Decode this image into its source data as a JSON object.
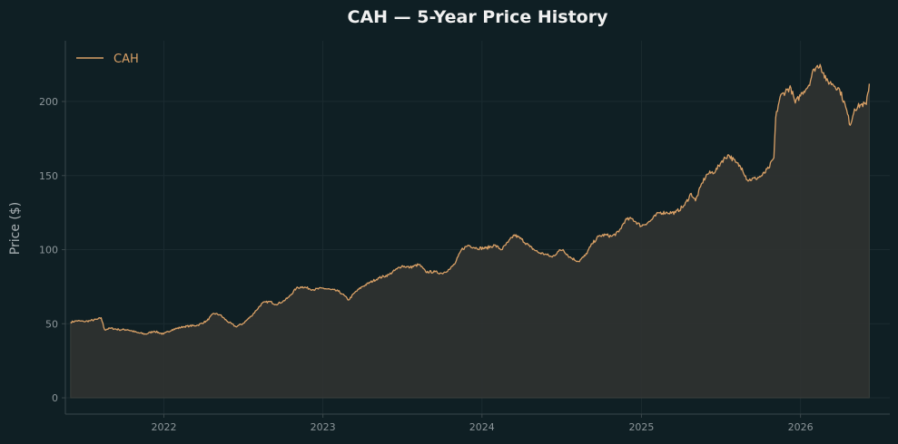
{
  "chart_data": {
    "type": "area",
    "title": "CAH — 5-Year Price History",
    "xlabel": "",
    "ylabel": "Price ($)",
    "xlim": [
      "2021-05-20",
      "2026-07-25"
    ],
    "ylim": [
      -11,
      241
    ],
    "x_ticks": [
      "2022",
      "2023",
      "2024",
      "2025",
      "2026"
    ],
    "y_ticks": [
      0,
      50,
      100,
      150,
      200
    ],
    "grid": true,
    "legend": "top-left",
    "colors": {
      "background": "#0f1f24",
      "line": "#d9a066",
      "fill": "#2e3230",
      "grid": "#1b2b30",
      "axis": "#3a474b",
      "tick_text": "#8c969a",
      "title_text": "#f0f0f0",
      "label_text": "#a8b0b3"
    },
    "series": [
      {
        "name": "CAH",
        "points": [
          [
            "2021-06-01",
            51
          ],
          [
            "2021-06-15",
            52
          ],
          [
            "2021-07-01",
            51.5
          ],
          [
            "2021-07-15",
            52
          ],
          [
            "2021-08-01",
            53
          ],
          [
            "2021-08-10",
            54
          ],
          [
            "2021-08-18",
            46
          ],
          [
            "2021-09-01",
            47
          ],
          [
            "2021-09-20",
            46
          ],
          [
            "2021-10-10",
            46
          ],
          [
            "2021-11-01",
            44
          ],
          [
            "2021-11-20",
            43
          ],
          [
            "2021-12-10",
            45
          ],
          [
            "2021-12-31",
            43
          ],
          [
            "2022-01-20",
            46
          ],
          [
            "2022-02-15",
            48
          ],
          [
            "2022-03-01",
            48.5
          ],
          [
            "2022-03-20",
            49
          ],
          [
            "2022-04-10",
            52
          ],
          [
            "2022-04-25",
            57
          ],
          [
            "2022-05-10",
            56
          ],
          [
            "2022-05-25",
            52
          ],
          [
            "2022-06-15",
            48
          ],
          [
            "2022-07-01",
            50
          ],
          [
            "2022-07-20",
            55
          ],
          [
            "2022-08-01",
            59
          ],
          [
            "2022-08-15",
            64
          ],
          [
            "2022-09-01",
            65
          ],
          [
            "2022-09-15",
            63
          ],
          [
            "2022-10-01",
            65
          ],
          [
            "2022-10-15",
            68
          ],
          [
            "2022-11-01",
            74
          ],
          [
            "2022-11-15",
            75
          ],
          [
            "2022-12-10",
            73
          ],
          [
            "2022-12-31",
            74
          ],
          [
            "2023-01-20",
            73
          ],
          [
            "2023-02-05",
            72
          ],
          [
            "2023-02-15",
            70
          ],
          [
            "2023-03-01",
            66
          ],
          [
            "2023-03-15",
            71
          ],
          [
            "2023-04-01",
            75
          ],
          [
            "2023-04-20",
            78
          ],
          [
            "2023-05-10",
            81
          ],
          [
            "2023-06-01",
            83
          ],
          [
            "2023-06-20",
            87
          ],
          [
            "2023-07-01",
            89
          ],
          [
            "2023-07-20",
            88
          ],
          [
            "2023-08-10",
            90
          ],
          [
            "2023-08-25",
            85
          ],
          [
            "2023-09-15",
            85
          ],
          [
            "2023-10-01",
            84
          ],
          [
            "2023-10-20",
            87
          ],
          [
            "2023-11-01",
            91
          ],
          [
            "2023-11-15",
            100
          ],
          [
            "2023-12-01",
            103
          ],
          [
            "2023-12-20",
            101
          ],
          [
            "2024-01-10",
            101
          ],
          [
            "2024-01-30",
            103
          ],
          [
            "2024-02-15",
            100
          ],
          [
            "2024-03-01",
            105
          ],
          [
            "2024-03-15",
            110
          ],
          [
            "2024-04-01",
            107
          ],
          [
            "2024-04-20",
            102
          ],
          [
            "2024-05-10",
            98
          ],
          [
            "2024-05-25",
            97
          ],
          [
            "2024-06-10",
            95
          ],
          [
            "2024-06-25",
            99
          ],
          [
            "2024-07-05",
            100
          ],
          [
            "2024-07-20",
            95
          ],
          [
            "2024-08-10",
            92
          ],
          [
            "2024-08-25",
            96
          ],
          [
            "2024-09-10",
            104
          ],
          [
            "2024-09-25",
            109
          ],
          [
            "2024-10-10",
            110
          ],
          [
            "2024-10-25",
            109
          ],
          [
            "2024-11-10",
            112
          ],
          [
            "2024-11-25",
            120
          ],
          [
            "2024-12-10",
            121
          ],
          [
            "2024-12-31",
            116
          ],
          [
            "2025-01-20",
            119
          ],
          [
            "2025-02-10",
            125
          ],
          [
            "2025-03-01",
            125
          ],
          [
            "2025-03-20",
            125
          ],
          [
            "2025-04-10",
            130
          ],
          [
            "2025-04-25",
            138
          ],
          [
            "2025-05-05",
            133
          ],
          [
            "2025-05-20",
            145
          ],
          [
            "2025-06-01",
            151
          ],
          [
            "2025-06-20",
            153
          ],
          [
            "2025-07-05",
            160
          ],
          [
            "2025-07-20",
            164
          ],
          [
            "2025-08-05",
            159
          ],
          [
            "2025-08-20",
            155
          ],
          [
            "2025-09-01",
            147
          ],
          [
            "2025-09-20",
            148
          ],
          [
            "2025-10-05",
            150
          ],
          [
            "2025-10-20",
            155
          ],
          [
            "2025-11-01",
            162
          ],
          [
            "2025-11-05",
            189
          ],
          [
            "2025-11-15",
            203
          ],
          [
            "2025-12-01",
            208
          ],
          [
            "2025-12-10",
            209
          ],
          [
            "2025-12-20",
            199
          ],
          [
            "2026-01-05",
            206
          ],
          [
            "2026-01-20",
            211
          ],
          [
            "2026-02-01",
            222
          ],
          [
            "2026-02-15",
            225
          ],
          [
            "2026-03-01",
            214
          ],
          [
            "2026-03-15",
            212
          ],
          [
            "2026-04-01",
            208
          ],
          [
            "2026-04-15",
            196
          ],
          [
            "2026-04-25",
            184
          ],
          [
            "2026-05-05",
            195
          ],
          [
            "2026-05-20",
            198
          ],
          [
            "2026-06-01",
            198
          ],
          [
            "2026-06-08",
            212
          ]
        ]
      }
    ]
  }
}
